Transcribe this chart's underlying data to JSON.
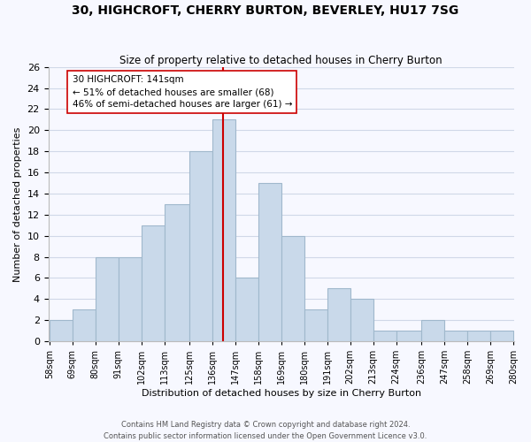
{
  "title": "30, HIGHCROFT, CHERRY BURTON, BEVERLEY, HU17 7SG",
  "subtitle": "Size of property relative to detached houses in Cherry Burton",
  "xlabel": "Distribution of detached houses by size in Cherry Burton",
  "ylabel": "Number of detached properties",
  "bin_edges": [
    58,
    69,
    80,
    91,
    102,
    113,
    125,
    136,
    147,
    158,
    169,
    180,
    191,
    202,
    213,
    224,
    236,
    247,
    258,
    269,
    280
  ],
  "bin_labels": [
    "58sqm",
    "69sqm",
    "80sqm",
    "91sqm",
    "102sqm",
    "113sqm",
    "125sqm",
    "136sqm",
    "147sqm",
    "158sqm",
    "169sqm",
    "180sqm",
    "191sqm",
    "202sqm",
    "213sqm",
    "224sqm",
    "236sqm",
    "247sqm",
    "258sqm",
    "269sqm",
    "280sqm"
  ],
  "bar_heights": [
    2,
    3,
    8,
    8,
    11,
    13,
    18,
    21,
    6,
    15,
    10,
    3,
    5,
    4,
    1,
    1,
    2,
    1,
    1,
    1
  ],
  "bar_color": "#c9d9ea",
  "bar_edge_color": "#a0b8cc",
  "vline_position": 7.5,
  "vline_color": "#cc0000",
  "annotation_text": "30 HIGHCROFT: 141sqm\n← 51% of detached houses are smaller (68)\n46% of semi-detached houses are larger (61) →",
  "annotation_box_color": "#ffffff",
  "annotation_box_edge": "#cc0000",
  "ylim": [
    0,
    26
  ],
  "yticks": [
    0,
    2,
    4,
    6,
    8,
    10,
    12,
    14,
    16,
    18,
    20,
    22,
    24,
    26
  ],
  "footer_line1": "Contains HM Land Registry data © Crown copyright and database right 2024.",
  "footer_line2": "Contains public sector information licensed under the Open Government Licence v3.0.",
  "bg_color": "#f7f8ff",
  "grid_color": "#d0d8e8"
}
